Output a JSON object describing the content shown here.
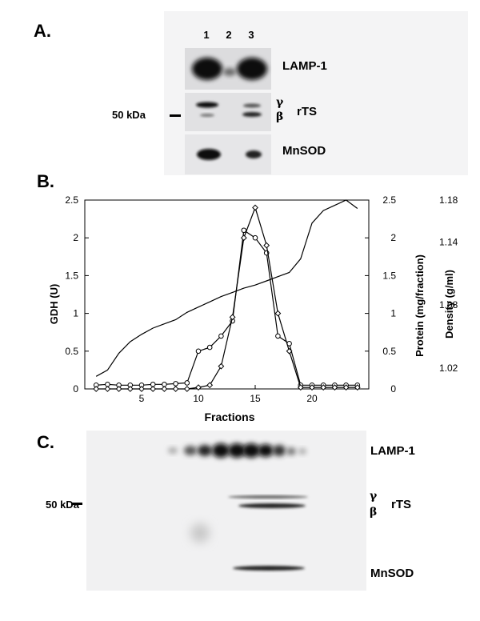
{
  "panel_a": {
    "letter": "A.",
    "lanes": [
      "1",
      "2",
      "3"
    ],
    "blots": {
      "lamp1": "LAMP-1",
      "rts": "rTS",
      "mnsod": "MnSOD"
    },
    "gamma": "γ",
    "beta": "β",
    "marker": "50 kDa"
  },
  "panel_b": {
    "letter": "B."
  },
  "panel_c": {
    "letter": "C.",
    "lamp1": "LAMP-1",
    "rts": "rTS",
    "mnsod": "MnSOD",
    "gamma": "γ",
    "beta": "β",
    "marker": "50 kDa"
  },
  "chart_data": {
    "type": "line",
    "xlabel": "Fractions",
    "ylabel": "GDH (U)",
    "y2label": "Protein (mg/fraction)",
    "y3label": "Density (g/ml)",
    "xlim": [
      0,
      25
    ],
    "ylim": [
      0,
      2.5
    ],
    "y2lim": [
      0,
      2.5
    ],
    "y3lim": [
      1.0,
      1.18
    ],
    "x_ticks": [
      5,
      10,
      15,
      20
    ],
    "y_ticks": [
      "0",
      "0.5",
      "1",
      "1.5",
      "2",
      "2.5"
    ],
    "y2_ticks": [
      "0",
      "0.5",
      "1",
      "1.5",
      "2",
      "2.5"
    ],
    "y3_ticks": [
      "1.02",
      "1.08",
      "1.14",
      "1.18"
    ],
    "grid": false,
    "series": [
      {
        "marker": "circle",
        "x": [
          1,
          2,
          3,
          4,
          5,
          6,
          7,
          8,
          9,
          10,
          11,
          12,
          13,
          14,
          15,
          16,
          17,
          18,
          19,
          20,
          21,
          22,
          23,
          24
        ],
        "y": [
          0.05,
          0.06,
          0.05,
          0.05,
          0.05,
          0.06,
          0.06,
          0.07,
          0.08,
          0.5,
          0.55,
          0.7,
          0.9,
          2.1,
          2.0,
          1.8,
          0.7,
          0.6,
          0.05,
          0.05,
          0.05,
          0.05,
          0.05,
          0.05
        ]
      },
      {
        "marker": "diamond",
        "x": [
          1,
          2,
          3,
          4,
          5,
          6,
          7,
          8,
          9,
          10,
          11,
          12,
          13,
          14,
          15,
          16,
          17,
          18,
          19,
          20,
          21,
          22,
          23,
          24
        ],
        "y": [
          0,
          0,
          0,
          0,
          0,
          0,
          0,
          0,
          0,
          0.02,
          0.05,
          0.3,
          0.95,
          2.0,
          2.4,
          1.9,
          1.0,
          0.5,
          0.02,
          0.02,
          0.02,
          0.02,
          0.02,
          0.02
        ]
      },
      {
        "marker": "none",
        "axis": "y3",
        "x": [
          1,
          2,
          3,
          4,
          5,
          6,
          7,
          8,
          9,
          10,
          11,
          12,
          13,
          14,
          15,
          16,
          17,
          18,
          19,
          20,
          21,
          22,
          23,
          24
        ],
        "y": [
          1.012,
          1.018,
          1.034,
          1.045,
          1.052,
          1.058,
          1.062,
          1.066,
          1.073,
          1.078,
          1.083,
          1.088,
          1.092,
          1.096,
          1.099,
          1.103,
          1.107,
          1.111,
          1.124,
          1.158,
          1.17,
          1.175,
          1.18,
          1.172
        ]
      }
    ]
  }
}
